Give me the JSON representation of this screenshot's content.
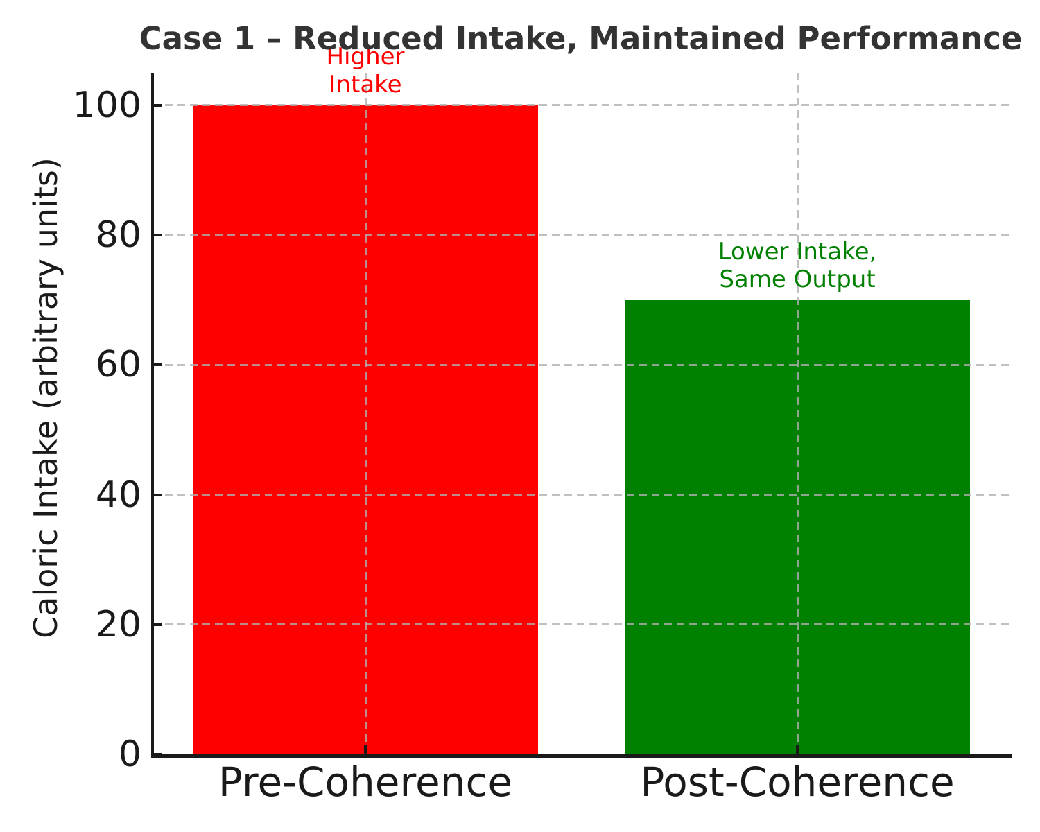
{
  "chart_data": {
    "type": "bar",
    "title": "Case 1 – Reduced Intake, Maintained Performance",
    "ylabel": "Caloric Intake (arbitrary units)",
    "xlabel": "",
    "categories": [
      "Pre-Coherence",
      "Post-Coherence"
    ],
    "values": [
      100,
      70
    ],
    "bar_colors": [
      "#ff0000",
      "#008000"
    ],
    "ylim": [
      0,
      105
    ],
    "yticks": [
      0,
      20,
      40,
      60,
      80,
      100
    ],
    "grid": true,
    "grid_style": "dashed",
    "legend": false,
    "annotations": [
      {
        "line1": "Higher",
        "line2": "Intake",
        "category": "Pre-Coherence",
        "y": 101,
        "color": "#ff0000"
      },
      {
        "line1": "Lower Intake,",
        "line2": "Same Output",
        "category": "Post-Coherence",
        "y": 71,
        "color": "#008000"
      }
    ],
    "colors": {
      "title": "#333333",
      "grid": "#b0b0b0",
      "axis": "#1a1a1a",
      "tick_label": "#1a1a1a",
      "background": "#ffffff"
    }
  }
}
